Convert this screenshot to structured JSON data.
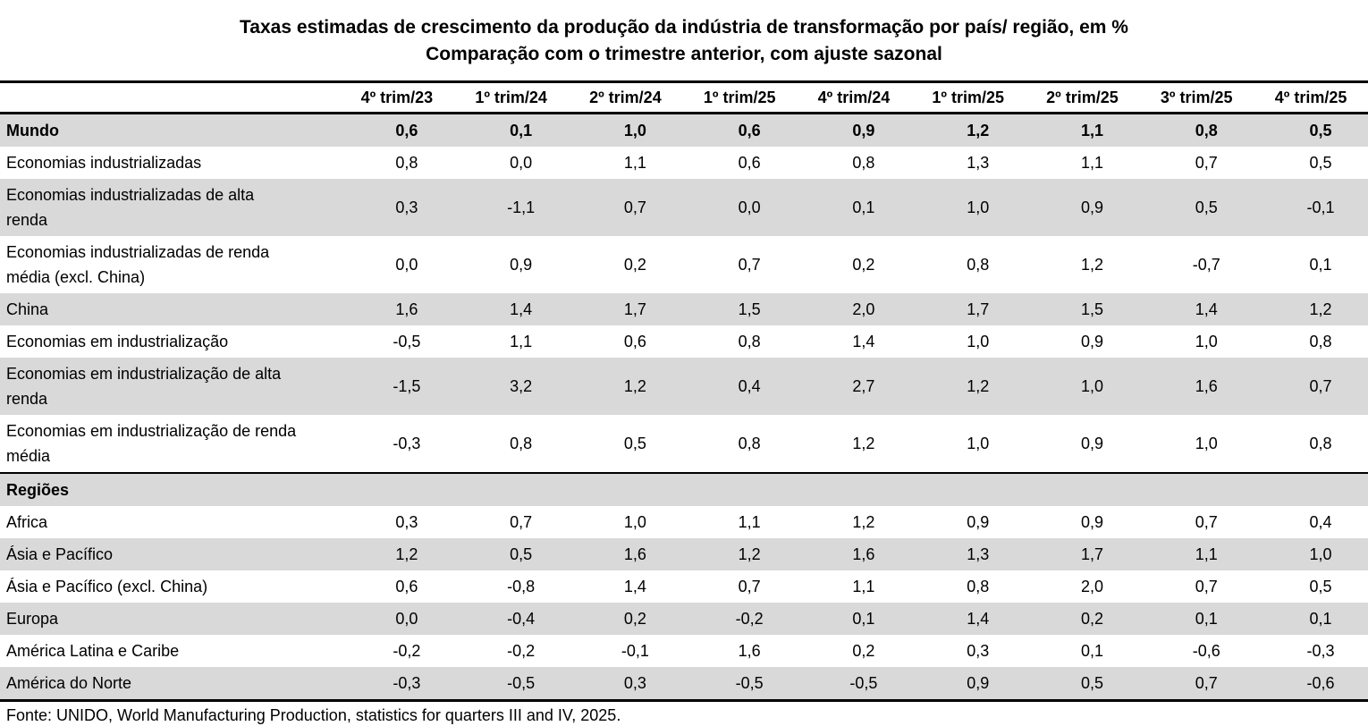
{
  "title": {
    "line1": "Taxas estimadas de crescimento da produção da indústria de transformação por país/ região, em %",
    "line2": "Comparação com o trimestre anterior, com ajuste sazonal"
  },
  "colors": {
    "stripe": "#d9d9d9",
    "border": "#000000",
    "text": "#000000"
  },
  "table": {
    "columns": [
      "4º trim/23",
      "1º trim/24",
      "2º trim/24",
      "1º trim/25",
      "4º trim/24",
      "1º trim/25",
      "2º trim/25",
      "3º trim/25",
      "4º trim/25"
    ],
    "rows": [
      {
        "label": "Mundo",
        "bold": true,
        "section": false,
        "values": [
          "0,6",
          "0,1",
          "1,0",
          "0,6",
          "0,9",
          "1,2",
          "1,1",
          "0,8",
          "0,5"
        ]
      },
      {
        "label": "Economias industrializadas",
        "bold": false,
        "section": false,
        "values": [
          "0,8",
          "0,0",
          "1,1",
          "0,6",
          "0,8",
          "1,3",
          "1,1",
          "0,7",
          "0,5"
        ]
      },
      {
        "label": "Economias industrializadas de alta\nrenda",
        "bold": false,
        "section": false,
        "values": [
          "0,3",
          "-1,1",
          "0,7",
          "0,0",
          "0,1",
          "1,0",
          "0,9",
          "0,5",
          "-0,1"
        ]
      },
      {
        "label": "Economias industrializadas de renda\nmédia (excl. China)",
        "bold": false,
        "section": false,
        "values": [
          "0,0",
          "0,9",
          "0,2",
          "0,7",
          "0,2",
          "0,8",
          "1,2",
          "-0,7",
          "0,1"
        ]
      },
      {
        "label": "China",
        "bold": false,
        "section": false,
        "values": [
          "1,6",
          "1,4",
          "1,7",
          "1,5",
          "2,0",
          "1,7",
          "1,5",
          "1,4",
          "1,2"
        ]
      },
      {
        "label": "Economias em industrialização",
        "bold": false,
        "section": false,
        "values": [
          "-0,5",
          "1,1",
          "0,6",
          "0,8",
          "1,4",
          "1,0",
          "0,9",
          "1,0",
          "0,8"
        ]
      },
      {
        "label": "Economias em industrialização de alta\nrenda",
        "bold": false,
        "section": false,
        "values": [
          "-1,5",
          "3,2",
          "1,2",
          "0,4",
          "2,7",
          "1,2",
          "1,0",
          "1,6",
          "0,7"
        ]
      },
      {
        "label": "Economias em industrialização de renda\nmédia",
        "bold": false,
        "section": false,
        "values": [
          "-0,3",
          "0,8",
          "0,5",
          "0,8",
          "1,2",
          "1,0",
          "0,9",
          "1,0",
          "0,8"
        ]
      },
      {
        "label": "Regiões",
        "bold": true,
        "section": true,
        "values": [
          "",
          "",
          "",
          "",
          "",
          "",
          "",
          "",
          ""
        ]
      },
      {
        "label": "Africa",
        "bold": false,
        "section": false,
        "values": [
          "0,3",
          "0,7",
          "1,0",
          "1,1",
          "1,2",
          "0,9",
          "0,9",
          "0,7",
          "0,4"
        ]
      },
      {
        "label": "Ásia e Pacífico",
        "bold": false,
        "section": false,
        "values": [
          "1,2",
          "0,5",
          "1,6",
          "1,2",
          "1,6",
          "1,3",
          "1,7",
          "1,1",
          "1,0"
        ]
      },
      {
        "label": "Ásia e Pacífico (excl. China)",
        "bold": false,
        "section": false,
        "values": [
          "0,6",
          "-0,8",
          "1,4",
          "0,7",
          "1,1",
          "0,8",
          "2,0",
          "0,7",
          "0,5"
        ]
      },
      {
        "label": "Europa",
        "bold": false,
        "section": false,
        "values": [
          "0,0",
          "-0,4",
          "0,2",
          "-0,2",
          "0,1",
          "1,4",
          "0,2",
          "0,1",
          "0,1"
        ]
      },
      {
        "label": "América Latina e Caribe",
        "bold": false,
        "section": false,
        "values": [
          "-0,2",
          "-0,2",
          "-0,1",
          "1,6",
          "0,2",
          "0,3",
          "0,1",
          "-0,6",
          "-0,3"
        ]
      },
      {
        "label": "América do Norte",
        "bold": false,
        "section": false,
        "values": [
          "-0,3",
          "-0,5",
          "0,3",
          "-0,5",
          "-0,5",
          "0,9",
          "0,5",
          "0,7",
          "-0,6"
        ]
      }
    ]
  },
  "footer": {
    "source": "Fonte: UNIDO, World Manufacturing Production, statistics for quarters III and IV, 2025."
  }
}
